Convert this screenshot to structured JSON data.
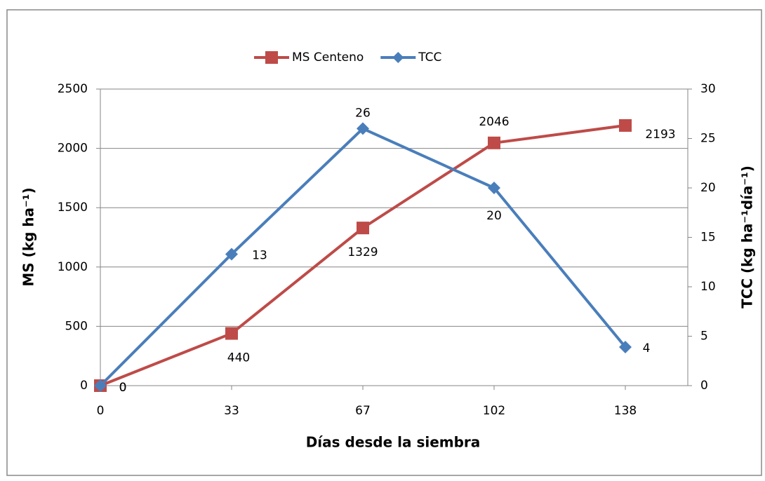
{
  "chart_data": {
    "type": "line",
    "x_label": "Días desde la siembra",
    "y_label": "MS (kg ha⁻¹)",
    "y2_label": "TCC (kg ha⁻¹día⁻¹)",
    "categories": [
      "0",
      "33",
      "67",
      "102",
      "138"
    ],
    "series": [
      {
        "name": "MS Centeno",
        "color": "#be4b48",
        "marker": "square",
        "values": [
          0,
          440,
          1329,
          2046,
          2193
        ]
      },
      {
        "name": "TCC",
        "color": "#4a7ebb",
        "marker": "diamond",
        "axis": "y2",
        "values": [
          0,
          13.3,
          26,
          20,
          3.9
        ],
        "value_labels": [
          "0",
          "13",
          "26",
          "20",
          "4"
        ]
      }
    ],
    "ylim": [
      0,
      2500
    ],
    "yticks": [
      0,
      500,
      1000,
      1500,
      2000,
      2500
    ],
    "y2lim": [
      0,
      30
    ],
    "y2ticks": [
      0,
      5,
      10,
      15,
      20,
      25,
      30
    ],
    "grid": true,
    "legend": "top"
  }
}
